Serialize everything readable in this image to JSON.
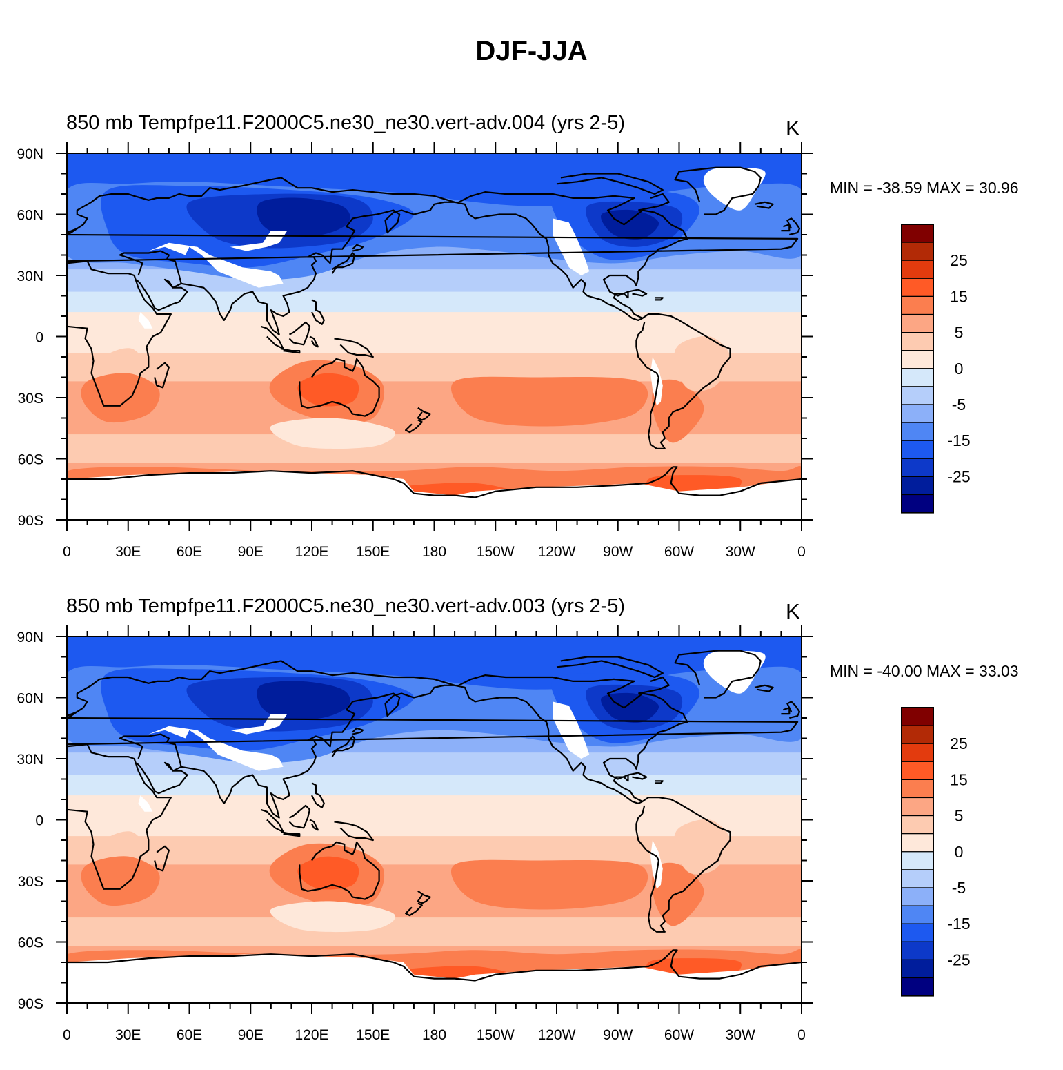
{
  "title": "DJF-JJA",
  "panels": [
    {
      "left_string": "850 mb Temp",
      "center_string": "fpe11.F2000C5.ne30_ne30.vert-adv.004 (yrs 2-5)",
      "units": "K",
      "minmax": "MIN = -38.59 MAX =  30.96",
      "min": -38.59,
      "max": 30.96
    },
    {
      "left_string": "850 mb Temp",
      "center_string": "fpe11.F2000C5.ne30_ne30.vert-adv.003 (yrs 2-5)",
      "units": "K",
      "minmax": "MIN = -40.00 MAX =  33.03",
      "min": -40.0,
      "max": 33.03
    }
  ],
  "map": {
    "projection": "cylindrical equidistant",
    "lon_range": [
      0,
      360
    ],
    "lat_range": [
      -90,
      90
    ],
    "lat_labels": [
      "90N",
      "60N",
      "30N",
      "0",
      "30S",
      "60S",
      "90S"
    ],
    "lon_labels": [
      "0",
      "30E",
      "60E",
      "90E",
      "120E",
      "150E",
      "180",
      "150W",
      "120W",
      "90W",
      "60W",
      "30W",
      "0"
    ],
    "missing_value_color": "#ffffff"
  },
  "colorbar": {
    "labels": [
      "25",
      "15",
      "5",
      "0",
      "-5",
      "-15",
      "-25"
    ],
    "colors_top_to_bottom": [
      "#800000",
      "#b22a06",
      "#e33b0e",
      "#ff5a26",
      "#fb7e4f",
      "#fca684",
      "#fdcbb1",
      "#fee8da",
      "#d5e8fa",
      "#b5cefa",
      "#8cb0f9",
      "#4f86f4",
      "#1d59f0",
      "#0d39c9",
      "#001d9c",
      "#000080"
    ]
  }
}
